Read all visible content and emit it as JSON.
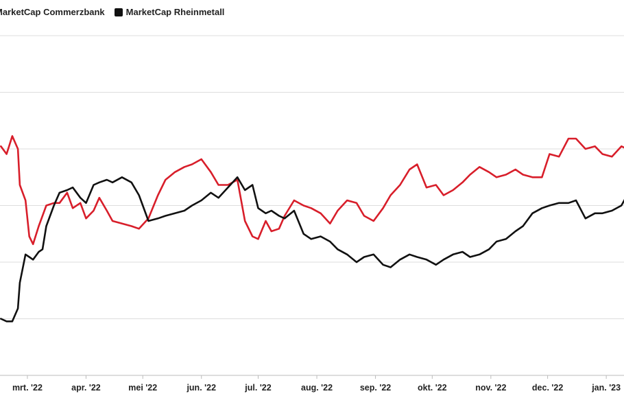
{
  "chart_data": {
    "type": "line",
    "title": "",
    "xlabel": "",
    "ylabel": "",
    "x_ticks": [
      "mrt. '22",
      "apr. '22",
      "mei '22",
      "jun. '22",
      "jul. '22",
      "aug. '22",
      "sep. '22",
      "okt. '22",
      "nov. '22",
      "dec. '22",
      "jan. '23"
    ],
    "grid": "horizontal",
    "legend_position": "top-left",
    "ylim": [
      0,
      6.6
    ],
    "series": [
      {
        "name": "MarketCap Commerzbank",
        "color": "#d81e2a",
        "x": [
          "2022-02-15",
          "2022-02-18",
          "2022-02-21",
          "2022-02-24",
          "2022-02-25",
          "2022-02-28",
          "2022-03-02",
          "2022-03-04",
          "2022-03-07",
          "2022-03-09",
          "2022-03-11",
          "2022-03-15",
          "2022-03-18",
          "2022-03-22",
          "2022-03-25",
          "2022-03-29",
          "2022-04-01",
          "2022-04-05",
          "2022-04-08",
          "2022-04-12",
          "2022-04-15",
          "2022-04-20",
          "2022-04-25",
          "2022-04-29",
          "2022-05-04",
          "2022-05-09",
          "2022-05-13",
          "2022-05-18",
          "2022-05-23",
          "2022-05-27",
          "2022-06-01",
          "2022-06-06",
          "2022-06-10",
          "2022-06-15",
          "2022-06-20",
          "2022-06-24",
          "2022-06-28",
          "2022-07-01",
          "2022-07-05",
          "2022-07-08",
          "2022-07-12",
          "2022-07-15",
          "2022-07-20",
          "2022-07-25",
          "2022-07-29",
          "2022-08-03",
          "2022-08-08",
          "2022-08-12",
          "2022-08-17",
          "2022-08-22",
          "2022-08-26",
          "2022-08-31",
          "2022-09-05",
          "2022-09-09",
          "2022-09-14",
          "2022-09-19",
          "2022-09-23",
          "2022-09-28",
          "2022-10-03",
          "2022-10-07",
          "2022-10-12",
          "2022-10-17",
          "2022-10-21",
          "2022-10-26",
          "2022-10-31",
          "2022-11-04",
          "2022-11-09",
          "2022-11-14",
          "2022-11-18",
          "2022-11-23",
          "2022-11-28",
          "2022-12-02",
          "2022-12-07",
          "2022-12-12",
          "2022-12-16",
          "2022-12-21",
          "2022-12-26",
          "2022-12-30",
          "2023-01-04",
          "2023-01-09",
          "2023-01-12"
        ],
        "y": [
          4.45,
          4.3,
          4.65,
          4.4,
          3.7,
          3.4,
          2.7,
          2.55,
          2.9,
          3.1,
          3.3,
          3.35,
          3.35,
          3.55,
          3.25,
          3.35,
          3.05,
          3.2,
          3.45,
          3.2,
          3.0,
          2.95,
          2.9,
          2.85,
          3.05,
          3.5,
          3.8,
          3.95,
          4.05,
          4.1,
          4.2,
          3.95,
          3.7,
          3.7,
          3.8,
          3.0,
          2.7,
          2.65,
          3.0,
          2.8,
          2.85,
          3.1,
          3.4,
          3.3,
          3.25,
          3.15,
          2.95,
          3.2,
          3.4,
          3.35,
          3.1,
          3.0,
          3.25,
          3.5,
          3.7,
          4.0,
          4.1,
          3.65,
          3.7,
          3.5,
          3.6,
          3.75,
          3.9,
          4.05,
          3.95,
          3.85,
          3.9,
          4.0,
          3.9,
          3.85,
          3.85,
          4.3,
          4.25,
          4.6,
          4.6,
          4.4,
          4.45,
          4.3,
          4.25,
          4.45,
          4.4
        ]
      },
      {
        "name": "MarketCap Rheinmetall",
        "color": "#111111",
        "x": [
          "2022-02-15",
          "2022-02-18",
          "2022-02-21",
          "2022-02-24",
          "2022-02-25",
          "2022-02-28",
          "2022-03-02",
          "2022-03-04",
          "2022-03-07",
          "2022-03-09",
          "2022-03-11",
          "2022-03-15",
          "2022-03-18",
          "2022-03-22",
          "2022-03-25",
          "2022-03-29",
          "2022-04-01",
          "2022-04-05",
          "2022-04-08",
          "2022-04-12",
          "2022-04-15",
          "2022-04-20",
          "2022-04-25",
          "2022-04-29",
          "2022-05-04",
          "2022-05-09",
          "2022-05-13",
          "2022-05-18",
          "2022-05-23",
          "2022-05-27",
          "2022-06-01",
          "2022-06-06",
          "2022-06-10",
          "2022-06-15",
          "2022-06-20",
          "2022-06-24",
          "2022-06-28",
          "2022-07-01",
          "2022-07-05",
          "2022-07-08",
          "2022-07-12",
          "2022-07-15",
          "2022-07-20",
          "2022-07-25",
          "2022-07-29",
          "2022-08-03",
          "2022-08-08",
          "2022-08-12",
          "2022-08-17",
          "2022-08-22",
          "2022-08-26",
          "2022-08-31",
          "2022-09-05",
          "2022-09-09",
          "2022-09-14",
          "2022-09-19",
          "2022-09-23",
          "2022-09-28",
          "2022-10-03",
          "2022-10-07",
          "2022-10-12",
          "2022-10-17",
          "2022-10-21",
          "2022-10-26",
          "2022-10-31",
          "2022-11-04",
          "2022-11-09",
          "2022-11-14",
          "2022-11-18",
          "2022-11-23",
          "2022-11-28",
          "2022-12-02",
          "2022-12-07",
          "2022-12-12",
          "2022-12-16",
          "2022-12-21",
          "2022-12-26",
          "2022-12-30",
          "2023-01-04",
          "2023-01-09",
          "2023-01-12"
        ],
        "y": [
          1.1,
          1.05,
          1.05,
          1.3,
          1.8,
          2.35,
          2.3,
          2.25,
          2.4,
          2.45,
          2.9,
          3.3,
          3.55,
          3.6,
          3.65,
          3.45,
          3.35,
          3.7,
          3.75,
          3.8,
          3.75,
          3.85,
          3.75,
          3.5,
          3.0,
          3.05,
          3.1,
          3.15,
          3.2,
          3.3,
          3.4,
          3.55,
          3.45,
          3.65,
          3.85,
          3.6,
          3.7,
          3.25,
          3.15,
          3.2,
          3.1,
          3.05,
          3.2,
          2.75,
          2.65,
          2.7,
          2.6,
          2.45,
          2.35,
          2.2,
          2.3,
          2.35,
          2.15,
          2.1,
          2.25,
          2.35,
          2.3,
          2.25,
          2.15,
          2.25,
          2.35,
          2.4,
          2.3,
          2.35,
          2.45,
          2.6,
          2.65,
          2.8,
          2.9,
          3.15,
          3.25,
          3.3,
          3.35,
          3.35,
          3.4,
          3.05,
          3.15,
          3.15,
          3.2,
          3.3,
          3.5
        ]
      }
    ]
  }
}
